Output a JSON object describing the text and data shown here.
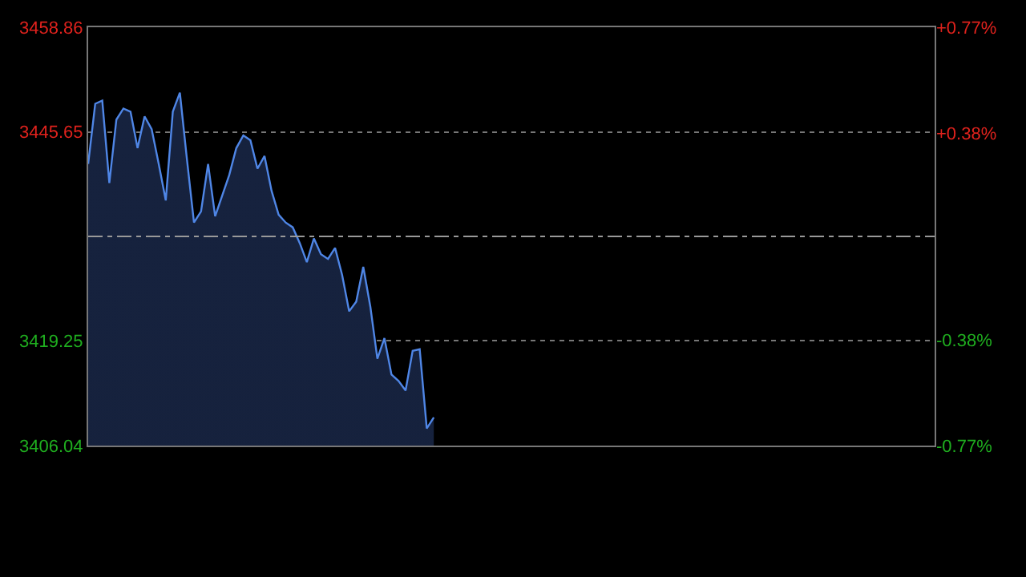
{
  "chart_data": {
    "type": "area",
    "categories": [
      null,
      null,
      null,
      null,
      null,
      null,
      null,
      null,
      null,
      null,
      null,
      null,
      null,
      null,
      null,
      null,
      null,
      null,
      null,
      null,
      null,
      null,
      null,
      null,
      null,
      null,
      null,
      null,
      null,
      null,
      null,
      null,
      null,
      null,
      null,
      null,
      null,
      null,
      null,
      null,
      null,
      null,
      null,
      null,
      null,
      null,
      null,
      null,
      null,
      null,
      null,
      null,
      null,
      null,
      null,
      null,
      null,
      null,
      null,
      null,
      null,
      null,
      null,
      null,
      null,
      null,
      null,
      null,
      null,
      null,
      null,
      null,
      null,
      null,
      null,
      null,
      null,
      null,
      null,
      null,
      null,
      null,
      null,
      null,
      null,
      null,
      null,
      null,
      null,
      null,
      null,
      null,
      null,
      null,
      null,
      null,
      null,
      null,
      null,
      null,
      null,
      null,
      null,
      null,
      null,
      null,
      null,
      null,
      null,
      null,
      null,
      null,
      null,
      null,
      null,
      null,
      null,
      null,
      null,
      null,
      null
    ],
    "series": [
      {
        "color": "#4f86e6",
        "values": [
          3441.6,
          3449.2,
          3449.6,
          3439.2,
          3447.2,
          3448.6,
          3448.2,
          3443.6,
          3447.6,
          3446.0,
          3441.6,
          3437.0,
          3448.2,
          3450.6,
          3442.2,
          3434.2,
          3435.6,
          3441.6,
          3435.0,
          3437.6,
          3440.2,
          3443.6,
          3445.2,
          3444.6,
          3441.0,
          3442.6,
          3438.2,
          3435.2,
          3434.2,
          3433.6,
          3431.6,
          3429.2,
          3432.2,
          3430.2,
          3429.6,
          3431.0,
          3427.6,
          3423.0,
          3424.2,
          3428.6,
          3423.6,
          3417.0,
          3419.6,
          3415.0,
          3414.2,
          3413.0,
          3418.0,
          3418.2,
          3408.2,
          3409.6,
          null,
          null,
          null,
          null,
          null,
          null,
          null,
          null,
          null,
          null,
          null,
          null,
          null,
          null,
          null,
          null,
          null,
          null,
          null,
          null,
          null,
          null,
          null,
          null,
          null,
          null,
          null,
          null,
          null,
          null,
          null,
          null,
          null,
          null,
          null,
          null,
          null,
          null,
          null,
          null,
          null,
          null,
          null,
          null,
          null,
          null,
          null,
          null,
          null,
          null,
          null,
          null,
          null,
          null,
          null,
          null,
          null,
          null,
          null,
          null,
          null,
          null,
          null,
          null,
          null,
          null,
          null,
          null,
          null,
          null,
          null
        ]
      }
    ],
    "ylim": [
      3406.04,
      3458.86
    ],
    "yticks": [
      3406.04,
      3419.25,
      3445.65,
      3458.86
    ],
    "y2lim": [
      -0.77,
      0.77
    ],
    "y2ticks": [
      {
        "value": 0.77,
        "label": "+0.77%"
      },
      {
        "value": 0.38,
        "label": "+0.38%"
      },
      {
        "value": -0.38,
        "label": "-0.38%"
      },
      {
        "value": -0.77,
        "label": "-0.77%"
      }
    ],
    "ref_lines": [
      {
        "axis": "y",
        "value": 3432.45,
        "line_style": "dashdot",
        "color": "#999999"
      }
    ],
    "grid": "y",
    "tick_labels": "y",
    "marker": "none",
    "line_style": "solid"
  }
}
